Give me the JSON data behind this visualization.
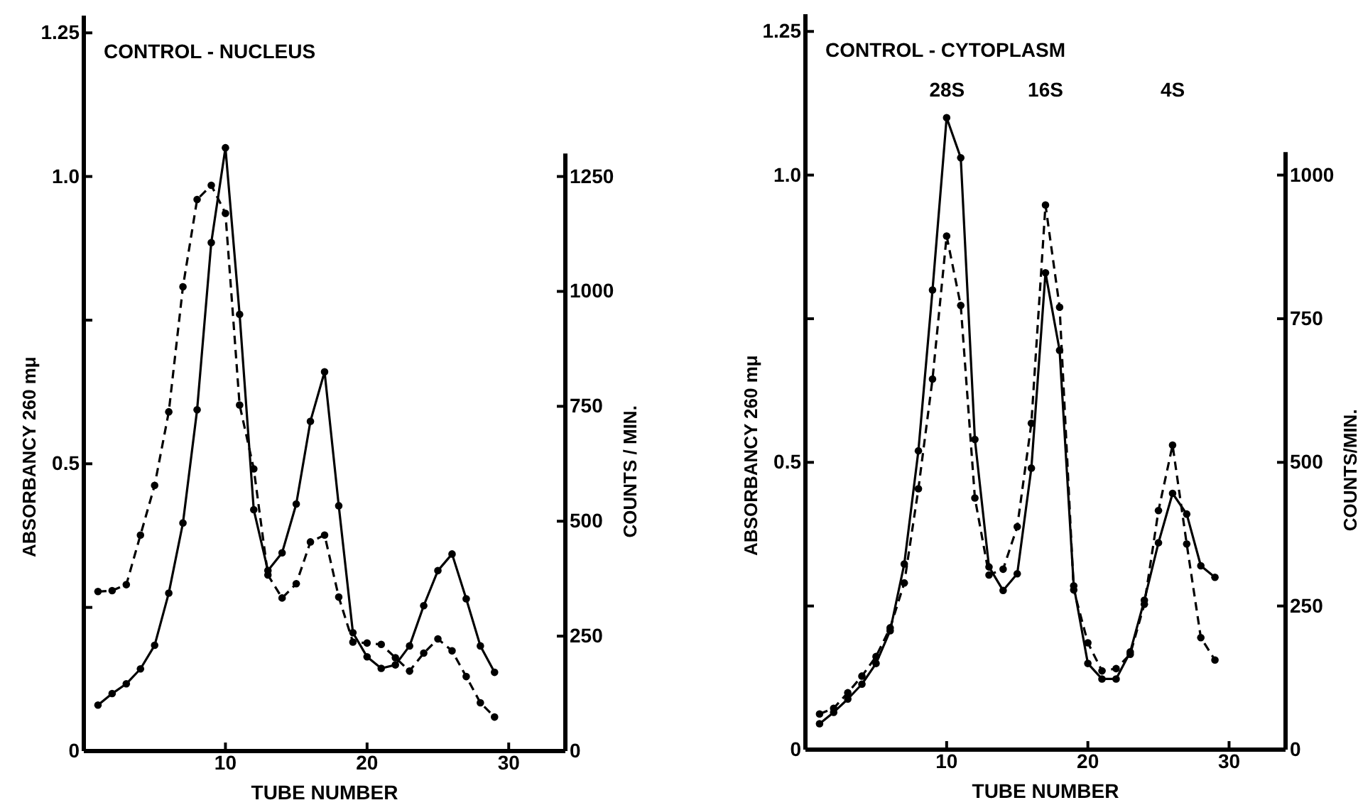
{
  "chart_data": [
    {
      "type": "line",
      "title": "CONTROL - NUCLEUS",
      "xlabel": "TUBE NUMBER",
      "ylabel": "ABSORBANCY 260 mμ",
      "y2label": "COUNTS / MIN.",
      "xlim": [
        0,
        34
      ],
      "xticks": [
        10,
        20,
        30
      ],
      "ylim": [
        0,
        1.28
      ],
      "yticks": [
        0,
        {
          "value": 0.25,
          "label": null
        },
        0.5,
        {
          "value": 0.75,
          "label": null
        },
        {
          "value": 1,
          "label": "1.0"
        },
        1.25
      ],
      "y2lim": [
        0,
        1300
      ],
      "y2ticks": [
        0,
        250,
        500,
        750,
        1000,
        1250
      ],
      "marker": "circle",
      "series": [
        {
          "color": "#000000",
          "line_style": "solid",
          "x": [
            1,
            2,
            3,
            4,
            5,
            6,
            7,
            8,
            9,
            10,
            11,
            12,
            13,
            14,
            15,
            16,
            17,
            18,
            19,
            20,
            21,
            22,
            23,
            24,
            25,
            26,
            27,
            28,
            29
          ],
          "values": [
            0.08,
            0.1,
            0.117,
            0.143,
            0.184,
            0.275,
            0.397,
            0.594,
            0.885,
            1.05,
            0.76,
            0.42,
            0.314,
            0.345,
            0.43,
            0.574,
            0.66,
            0.427,
            0.206,
            0.164,
            0.144,
            0.15,
            0.183,
            0.253,
            0.314,
            0.343,
            0.265,
            0.183,
            0.137
          ]
        },
        {
          "color": "#000000",
          "line_style": "dashed",
          "axis": "y2",
          "x": [
            1,
            2,
            3,
            4,
            5,
            6,
            7,
            8,
            9,
            10,
            11,
            12,
            13,
            14,
            15,
            16,
            17,
            18,
            19,
            20,
            21,
            22,
            23,
            24,
            25,
            26,
            27,
            28,
            29
          ],
          "values": [
            347,
            349,
            362,
            470,
            578,
            738,
            1010,
            1200,
            1231,
            1170,
            753,
            614,
            383,
            333,
            364,
            455,
            470,
            335,
            237,
            235,
            232,
            203,
            174,
            213,
            244,
            218,
            162,
            105,
            74
          ]
        }
      ]
    },
    {
      "type": "line",
      "title": "CONTROL - CYTOPLASM",
      "xlabel": "TUBE NUMBER",
      "ylabel": "ABSORBANCY 260 mμ",
      "y2label": "COUNTS/MIN.",
      "xlim": [
        0,
        34
      ],
      "xticks": [
        10,
        20,
        30
      ],
      "ylim": [
        0,
        1.28
      ],
      "yticks": [
        0,
        {
          "value": 0.25,
          "label": null
        },
        0.5,
        {
          "value": 0.75,
          "label": null
        },
        {
          "value": 1,
          "label": "1.0"
        },
        1.25
      ],
      "y2lim": [
        0,
        1040
      ],
      "y2ticks": [
        0,
        250,
        500,
        750,
        1000
      ],
      "marker": "circle",
      "annotations": [
        "28S",
        "16S",
        "4S"
      ],
      "series": [
        {
          "color": "#000000",
          "line_style": "solid",
          "x": [
            1,
            2,
            3,
            4,
            5,
            6,
            7,
            8,
            9,
            10,
            11,
            12,
            13,
            14,
            15,
            16,
            17,
            18,
            19,
            20,
            21,
            22,
            23,
            24,
            25,
            26,
            27,
            28,
            29
          ],
          "values": [
            0.045,
            0.065,
            0.088,
            0.114,
            0.15,
            0.207,
            0.323,
            0.52,
            0.8,
            1.1,
            1.03,
            0.54,
            0.318,
            0.277,
            0.306,
            0.49,
            0.83,
            0.695,
            0.285,
            0.15,
            0.123,
            0.123,
            0.17,
            0.26,
            0.36,
            0.446,
            0.41,
            0.32,
            0.3
          ]
        },
        {
          "color": "#000000",
          "line_style": "dashed",
          "axis": "y2",
          "x": [
            1,
            2,
            3,
            4,
            5,
            6,
            7,
            8,
            9,
            10,
            11,
            12,
            13,
            14,
            15,
            16,
            17,
            18,
            19,
            20,
            21,
            22,
            23,
            24,
            25,
            26,
            27,
            28,
            29
          ],
          "values": [
            62,
            72,
            99,
            128,
            162,
            212,
            290,
            454,
            645,
            894,
            773,
            438,
            304,
            314,
            388,
            568,
            948,
            770,
            278,
            186,
            137,
            141,
            166,
            253,
            416,
            530,
            358,
            195,
            156
          ]
        }
      ]
    }
  ]
}
